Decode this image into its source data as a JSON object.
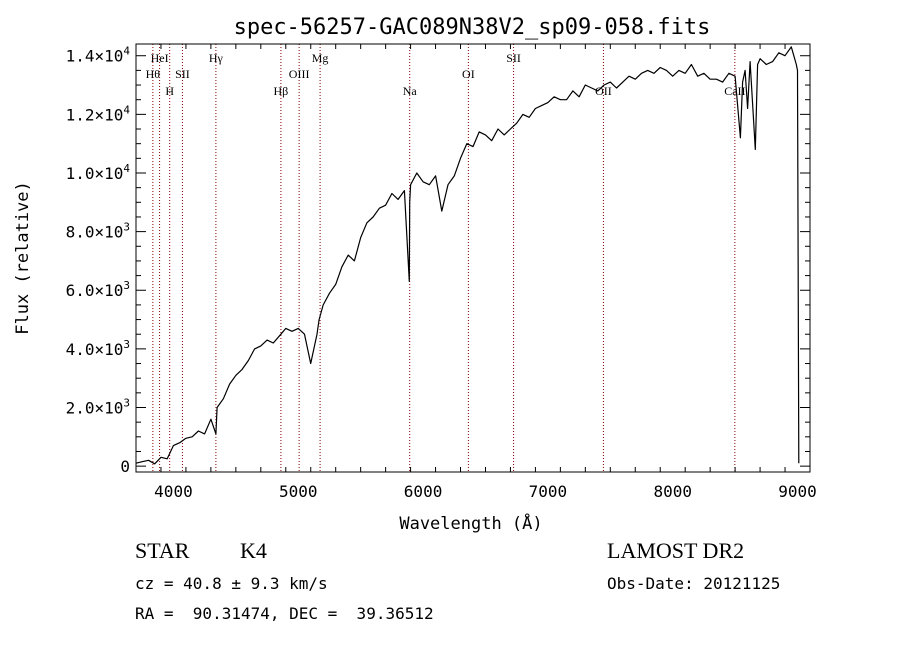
{
  "chart_data": {
    "type": "line",
    "title": "spec-56257-GAC089N38V2_sp09-058.fits",
    "xlabel": "Wavelength (Å)",
    "ylabel": "Flux (relative)",
    "xlim": [
      3700,
      9100
    ],
    "ylim": [
      -200,
      14400
    ],
    "x_ticks": [
      4000,
      5000,
      6000,
      7000,
      8000,
      9000
    ],
    "x_tick_labels": [
      "4000",
      "5000",
      "6000",
      "7000",
      "8000",
      "9000"
    ],
    "y_ticks": [
      0,
      2000,
      4000,
      6000,
      8000,
      10000,
      12000,
      14000
    ],
    "y_tick_labels": [
      {
        "base": "0",
        "exp": ""
      },
      {
        "base": "2.0×10",
        "exp": "3"
      },
      {
        "base": "4.0×10",
        "exp": "3"
      },
      {
        "base": "6.0×10",
        "exp": "3"
      },
      {
        "base": "8.0×10",
        "exp": "3"
      },
      {
        "base": "1.0×10",
        "exp": "4"
      },
      {
        "base": "1.2×10",
        "exp": "4"
      },
      {
        "base": "1.4×10",
        "exp": "4"
      }
    ],
    "grid": false,
    "line_color": "#000000",
    "line_marker_color": "#8b0000",
    "series": [
      {
        "x": [
          3700,
          3750,
          3800,
          3850,
          3900,
          3950,
          4000,
          4050,
          4100,
          4150,
          4200,
          4250,
          4300,
          4340,
          4350,
          4400,
          4450,
          4500,
          4550,
          4600,
          4650,
          4700,
          4750,
          4800,
          4861,
          4900,
          4950,
          5000,
          5050,
          5100,
          5150,
          5167,
          5200,
          5250,
          5300,
          5350,
          5400,
          5450,
          5500,
          5550,
          5600,
          5650,
          5700,
          5750,
          5800,
          5850,
          5890,
          5893,
          5900,
          5950,
          6000,
          6050,
          6100,
          6150,
          6200,
          6250,
          6300,
          6350,
          6400,
          6450,
          6500,
          6550,
          6600,
          6650,
          6700,
          6750,
          6800,
          6850,
          6900,
          6950,
          7000,
          7050,
          7100,
          7150,
          7200,
          7250,
          7300,
          7350,
          7400,
          7450,
          7500,
          7550,
          7600,
          7650,
          7700,
          7750,
          7800,
          7850,
          7900,
          7950,
          8000,
          8050,
          8100,
          8150,
          8200,
          8250,
          8300,
          8350,
          8400,
          8450,
          8500,
          8542,
          8560,
          8580,
          8600,
          8620,
          8662,
          8680,
          8700,
          8750,
          8800,
          8850,
          8900,
          8950,
          8970,
          8990,
          9000,
          9010
        ],
        "y": [
          100,
          150,
          200,
          80,
          300,
          250,
          700,
          800,
          950,
          1000,
          1200,
          1100,
          1600,
          1100,
          2000,
          2300,
          2800,
          3100,
          3300,
          3600,
          4000,
          4100,
          4300,
          4200,
          4500,
          4700,
          4600,
          4700,
          4500,
          3500,
          4500,
          5000,
          5500,
          5900,
          6200,
          6800,
          7200,
          7000,
          7800,
          8300,
          8500,
          8800,
          8900,
          9300,
          9100,
          9400,
          6300,
          9000,
          9600,
          10000,
          9700,
          9600,
          9900,
          8700,
          9600,
          9900,
          10500,
          11000,
          10900,
          11400,
          11300,
          11100,
          11500,
          11300,
          11500,
          11700,
          12000,
          11900,
          12200,
          12300,
          12400,
          12600,
          12500,
          12500,
          12800,
          12600,
          13000,
          12900,
          12800,
          13000,
          13100,
          12900,
          13100,
          13300,
          13200,
          13400,
          13500,
          13400,
          13600,
          13500,
          13300,
          13500,
          13400,
          13700,
          13300,
          13400,
          13200,
          13200,
          13100,
          13400,
          13300,
          11200,
          13100,
          13500,
          12200,
          13800,
          10800,
          13700,
          13900,
          13700,
          13800,
          14100,
          14000,
          14300,
          14000,
          13700,
          13500,
          100
        ]
      }
    ],
    "line_markers": [
      {
        "x": 3889,
        "label": "HeI",
        "row": 1
      },
      {
        "x": 3835,
        "label": "Hθ",
        "row": 2
      },
      {
        "x": 3970,
        "label": "H",
        "row": 3
      },
      {
        "x": 4072,
        "label": "SII",
        "row": 2
      },
      {
        "x": 4340,
        "label": "Hγ",
        "row": 1
      },
      {
        "x": 4861,
        "label": "Hβ",
        "row": 3
      },
      {
        "x": 5007,
        "label": "OIII",
        "row": 2
      },
      {
        "x": 5175,
        "label": "Mg",
        "row": 1
      },
      {
        "x": 5893,
        "label": "Na",
        "row": 3
      },
      {
        "x": 6363,
        "label": "OI",
        "row": 2
      },
      {
        "x": 6725,
        "label": "SII",
        "row": 1
      },
      {
        "x": 7445,
        "label": "OII",
        "row": 3
      },
      {
        "x": 8498,
        "label": "CaII",
        "row": 3
      }
    ]
  },
  "info": {
    "class_label": "STAR",
    "subclass": "K4",
    "survey": "LAMOST DR2",
    "velocity": "cz = 40.8 ± 9.3 km/s",
    "obs_date": "Obs-Date: 20121125",
    "coords": "RA =  90.31474, DEC =  39.36512"
  }
}
